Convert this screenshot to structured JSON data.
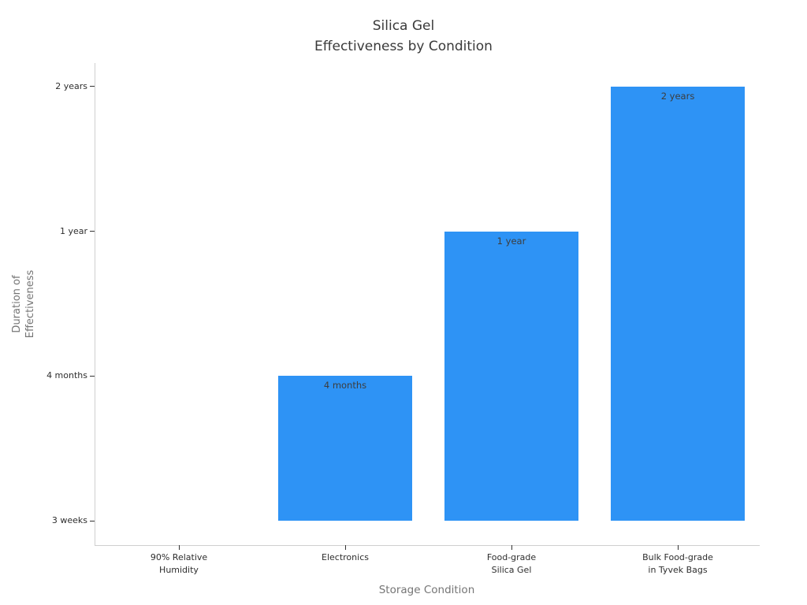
{
  "title": {
    "line1": "Silica Gel",
    "line2": "Effectiveness by Condition"
  },
  "chart_data": {
    "type": "bar",
    "title": "Silica Gel\nEffectiveness by Condition",
    "xlabel": "Storage Condition",
    "ylabel": "Duration of\nEffectiveness",
    "categories": [
      "90% Relative\nHumidity",
      "Electronics",
      "Food-grade\nSilica Gel",
      "Bulk Food-grade\nin Tyvek Bags"
    ],
    "values": [
      "3 weeks",
      "4 months",
      "1 year",
      "2 years"
    ],
    "values_in_weeks": [
      3,
      17,
      52,
      104
    ],
    "bar_value_labels": [
      "",
      "4 months",
      "1 year",
      "2 years"
    ],
    "y_tick_labels": [
      "3 weeks",
      "4 months",
      "1 year",
      "2 years"
    ],
    "y_tick_levels": [
      0,
      1,
      2,
      3
    ],
    "bar_levels": [
      0,
      1,
      2,
      3
    ],
    "y_scale": "ordinal-evenly-spaced-ticks",
    "grid": false,
    "legend": false,
    "colors": {
      "bar": "#2e93f5",
      "title_text": "#3a3a3a",
      "tick_text": "#2e2e2e",
      "axis_label_text": "#757575",
      "bar_label_text": "#3d3d3d",
      "spine": "#cfcfcf",
      "tick_mark": "#333333",
      "background": "#ffffff"
    }
  }
}
